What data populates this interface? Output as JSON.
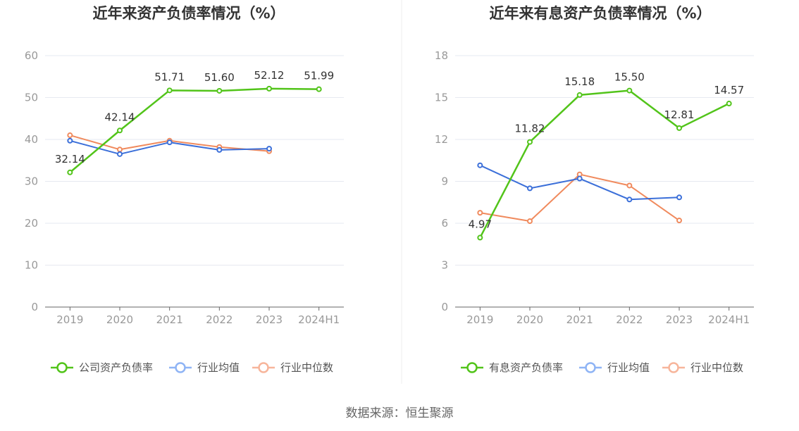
{
  "source": "数据来源：恒生聚源",
  "colors": {
    "company": "#52c41a",
    "industry_avg": "#3b6fd9",
    "industry_median": "#f08a5d",
    "company_legend": "#52c41a",
    "avg_legend": "#8fb4f5",
    "median_legend": "#f7b59b",
    "grid": "#e6e9f0",
    "axis": "#666666",
    "divider": "#eeeeee"
  },
  "chart_data": [
    {
      "type": "line",
      "title": "近年来资产负债率情况（%）",
      "categories": [
        "2019",
        "2020",
        "2021",
        "2022",
        "2023",
        "2024H1"
      ],
      "ylim": [
        0,
        60
      ],
      "yticks": [
        0,
        10,
        20,
        30,
        40,
        50,
        60
      ],
      "series": [
        {
          "key": "company",
          "name": "公司资产负债率",
          "values": [
            32.14,
            42.14,
            51.71,
            51.6,
            52.12,
            51.99
          ],
          "labels": [
            "32.14",
            "42.14",
            "51.71",
            "51.60",
            "52.12",
            "51.99"
          ]
        },
        {
          "key": "industry_avg",
          "name": "行业均值",
          "values": [
            39.7,
            36.5,
            39.3,
            37.5,
            37.8,
            null
          ]
        },
        {
          "key": "industry_median",
          "name": "行业中位数",
          "values": [
            41.0,
            37.6,
            39.7,
            38.2,
            37.2,
            null
          ]
        }
      ]
    },
    {
      "type": "line",
      "title": "近年来有息资产负债率情况（%）",
      "categories": [
        "2019",
        "2020",
        "2021",
        "2022",
        "2023",
        "2024H1"
      ],
      "ylim": [
        0,
        18
      ],
      "yticks": [
        0,
        3,
        6,
        9,
        12,
        15,
        18
      ],
      "series": [
        {
          "key": "company",
          "name": "有息资产负债率",
          "values": [
            4.97,
            11.82,
            15.18,
            15.5,
            12.81,
            14.57
          ],
          "labels": [
            "4.97",
            "11.82",
            "15.18",
            "15.50",
            "12.81",
            "14.57"
          ]
        },
        {
          "key": "industry_avg",
          "name": "行业均值",
          "values": [
            10.15,
            8.5,
            9.2,
            7.7,
            7.85,
            null
          ]
        },
        {
          "key": "industry_median",
          "name": "行业中位数",
          "values": [
            6.75,
            6.15,
            9.5,
            8.7,
            6.2,
            null
          ]
        }
      ]
    }
  ]
}
